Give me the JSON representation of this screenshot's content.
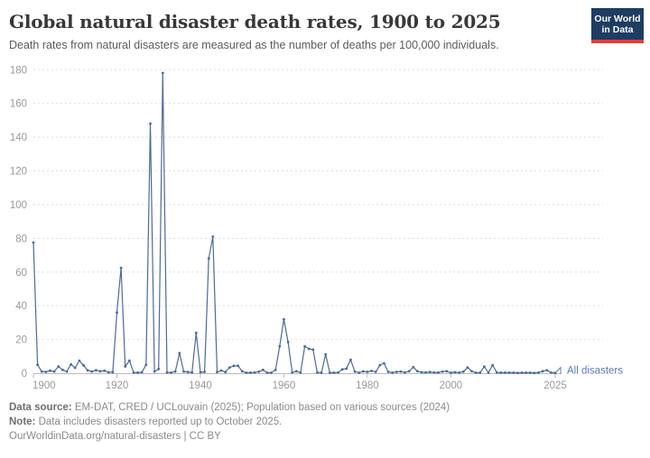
{
  "header": {
    "title": "Global natural disaster death rates, 1900 to 2025",
    "subtitle": "Death rates from natural disasters are measured as the number of deaths per 100,000 individuals.",
    "logo": {
      "line1": "Our World",
      "line2": "in Data",
      "bg_color": "#1d3d63",
      "accent_color": "#e0403a"
    }
  },
  "chart_data": {
    "type": "line",
    "title": "Global natural disaster death rates, 1900 to 2025",
    "xlabel": "",
    "ylabel": "",
    "xlim": [
      1900,
      2025
    ],
    "ylim": [
      0,
      180
    ],
    "x_ticks": [
      1900,
      1920,
      1940,
      1960,
      1980,
      2000,
      2025
    ],
    "y_ticks": [
      0,
      20,
      40,
      60,
      80,
      100,
      120,
      140,
      160,
      180
    ],
    "grid": "horizontal-dashed",
    "grid_color": "#dddddd",
    "axis_color": "#bbbbbb",
    "tick_label_color": "#999999",
    "legend_position": "end-of-line-label",
    "series": [
      {
        "name": "All disasters",
        "color": "#4c6a9c",
        "label_color": "#5b79b8",
        "x": [
          1900,
          1901,
          1902,
          1903,
          1904,
          1905,
          1906,
          1907,
          1908,
          1909,
          1910,
          1911,
          1912,
          1913,
          1914,
          1915,
          1916,
          1917,
          1918,
          1919,
          1920,
          1921,
          1922,
          1923,
          1924,
          1925,
          1926,
          1927,
          1928,
          1929,
          1930,
          1931,
          1932,
          1933,
          1934,
          1935,
          1936,
          1937,
          1938,
          1939,
          1940,
          1941,
          1942,
          1943,
          1944,
          1945,
          1946,
          1947,
          1948,
          1949,
          1950,
          1951,
          1952,
          1953,
          1954,
          1955,
          1956,
          1957,
          1958,
          1959,
          1960,
          1961,
          1962,
          1963,
          1964,
          1965,
          1966,
          1967,
          1968,
          1969,
          1970,
          1971,
          1972,
          1973,
          1974,
          1975,
          1976,
          1977,
          1978,
          1979,
          1980,
          1981,
          1982,
          1983,
          1984,
          1985,
          1986,
          1987,
          1988,
          1989,
          1990,
          1991,
          1992,
          1993,
          1994,
          1995,
          1996,
          1997,
          1998,
          1999,
          2000,
          2001,
          2002,
          2003,
          2004,
          2005,
          2006,
          2007,
          2008,
          2009,
          2010,
          2011,
          2012,
          2013,
          2014,
          2015,
          2016,
          2017,
          2018,
          2019,
          2020,
          2021,
          2022,
          2023,
          2024,
          2025
        ],
        "values": [
          77.5,
          5,
          1,
          0.8,
          1.5,
          1,
          4,
          2,
          1,
          5.3,
          3.2,
          7.5,
          4.7,
          1.7,
          1,
          1.8,
          1.2,
          1.5,
          0.6,
          0.7,
          36,
          62.5,
          4,
          7.5,
          0.5,
          0.4,
          0.6,
          5,
          148,
          1,
          2.5,
          178,
          0.5,
          0.4,
          1,
          12,
          1,
          0.7,
          0.5,
          24,
          0.6,
          0.8,
          68,
          81,
          0.7,
          1.6,
          0.7,
          3.4,
          4.4,
          4.4,
          1.2,
          0.3,
          0.4,
          0.5,
          0.9,
          2,
          0.3,
          0.3,
          2,
          16,
          32,
          18.5,
          0.5,
          1.2,
          0.4,
          16,
          14.5,
          14,
          0.5,
          0.3,
          11.2,
          0.3,
          0.3,
          0.5,
          2.3,
          2.8,
          8,
          1,
          0.3,
          1.1,
          0.8,
          1.4,
          0.8,
          4.8,
          5.9,
          0.8,
          0.4,
          0.8,
          1,
          0.5,
          1.2,
          3.6,
          1.2,
          0.6,
          0.5,
          0.7,
          0.5,
          0.4,
          1,
          1.2,
          0.3,
          0.6,
          0.4,
          0.9,
          3.4,
          1.2,
          0.3,
          0.4,
          3.9,
          0.4,
          4.8,
          0.5,
          0.3,
          0.4,
          0.3,
          0.3,
          0.2,
          0.3,
          0.3,
          0.3,
          0.2,
          0.4,
          1.2,
          1.8,
          0.4,
          0.2
        ]
      }
    ]
  },
  "footer": {
    "source_label": "Data source:",
    "source_text": " EM-DAT, CRED / UCLouvain (2025); Population based on various sources (2024)",
    "note_label": "Note:",
    "note_text": " Data includes disasters reported up to October 2025.",
    "link_text": "OurWorldinData.org/natural-disasters | CC BY"
  }
}
